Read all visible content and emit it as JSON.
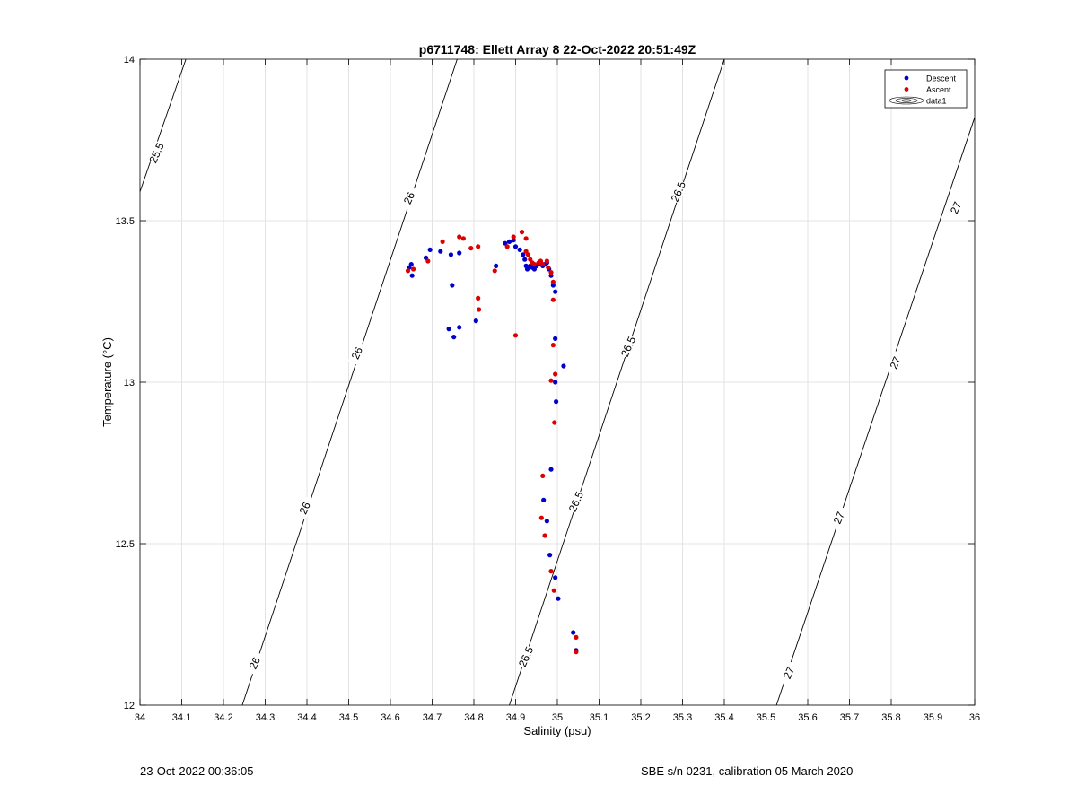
{
  "chart_data": {
    "type": "scatter",
    "title": "p6711748: Ellett Array 8 22-Oct-2022 20:51:49Z",
    "xlabel": "Salinity (psu)",
    "ylabel": "Temperature (°C)",
    "xlim": [
      34,
      36
    ],
    "ylim": [
      12,
      14
    ],
    "x_ticks": [
      "34",
      "34.1",
      "34.2",
      "34.3",
      "34.4",
      "34.5",
      "34.6",
      "34.7",
      "34.8",
      "34.9",
      "35",
      "35.1",
      "35.2",
      "35.3",
      "35.4",
      "35.5",
      "35.6",
      "35.7",
      "35.8",
      "35.9",
      "36"
    ],
    "y_ticks": [
      "12",
      "12.5",
      "13",
      "13.5",
      "14"
    ],
    "grid": true,
    "legend_position": "top-right",
    "colors": {
      "descent": "#0000cc",
      "ascent": "#dd0000",
      "contour": "#000000",
      "grid": "#e3e3e3"
    },
    "legend": [
      {
        "label": "Descent",
        "marker": "dot",
        "color": "#0000cc"
      },
      {
        "label": "Ascent",
        "marker": "dot",
        "color": "#dd0000"
      },
      {
        "label": "data1",
        "marker": "contour-icon",
        "color": "#000000"
      }
    ],
    "contours": [
      {
        "label": "25.5",
        "points": [
          [
            34.0,
            13.59
          ],
          [
            34.11,
            14.0
          ]
        ]
      },
      {
        "label": "26",
        "points": [
          [
            34.245,
            12.0
          ],
          [
            34.76,
            14.0
          ]
        ]
      },
      {
        "label": "26.5",
        "points": [
          [
            34.885,
            12.0
          ],
          [
            35.4,
            14.0
          ]
        ]
      },
      {
        "label": "27",
        "points": [
          [
            35.525,
            12.0
          ],
          [
            36.0,
            13.82
          ]
        ]
      }
    ],
    "contour_labels": [
      {
        "text": "25.5",
        "x": 34.04,
        "y": 13.71
      },
      {
        "text": "26",
        "x": 34.645,
        "y": 13.57
      },
      {
        "text": "26",
        "x": 34.52,
        "y": 13.09
      },
      {
        "text": "26",
        "x": 34.395,
        "y": 12.61
      },
      {
        "text": "26",
        "x": 34.275,
        "y": 12.13
      },
      {
        "text": "26.5",
        "x": 35.29,
        "y": 13.59
      },
      {
        "text": "26.5",
        "x": 35.17,
        "y": 13.11
      },
      {
        "text": "26.5",
        "x": 35.045,
        "y": 12.63
      },
      {
        "text": "26.5",
        "x": 34.925,
        "y": 12.15
      },
      {
        "text": "27",
        "x": 35.955,
        "y": 13.54
      },
      {
        "text": "27",
        "x": 35.81,
        "y": 13.06
      },
      {
        "text": "27",
        "x": 35.675,
        "y": 12.58
      },
      {
        "text": "27",
        "x": 35.555,
        "y": 12.1
      }
    ],
    "series": [
      {
        "name": "Descent",
        "points": [
          [
            34.645,
            13.355
          ],
          [
            34.65,
            13.365
          ],
          [
            34.652,
            13.33
          ],
          [
            34.685,
            13.385
          ],
          [
            34.695,
            13.41
          ],
          [
            34.72,
            13.405
          ],
          [
            34.745,
            13.395
          ],
          [
            34.748,
            13.3
          ],
          [
            34.74,
            13.165
          ],
          [
            34.752,
            13.14
          ],
          [
            34.765,
            13.17
          ],
          [
            34.765,
            13.4
          ],
          [
            34.805,
            13.19
          ],
          [
            34.853,
            13.36
          ],
          [
            34.875,
            13.43
          ],
          [
            34.885,
            13.435
          ],
          [
            34.895,
            13.44
          ],
          [
            34.9,
            13.42
          ],
          [
            34.91,
            13.41
          ],
          [
            34.918,
            13.395
          ],
          [
            34.922,
            13.38
          ],
          [
            34.925,
            13.36
          ],
          [
            34.928,
            13.35
          ],
          [
            34.935,
            13.36
          ],
          [
            34.94,
            13.355
          ],
          [
            34.945,
            13.35
          ],
          [
            34.95,
            13.36
          ],
          [
            34.955,
            13.365
          ],
          [
            34.96,
            13.37
          ],
          [
            34.965,
            13.36
          ],
          [
            34.97,
            13.365
          ],
          [
            34.975,
            13.37
          ],
          [
            34.98,
            13.35
          ],
          [
            34.985,
            13.33
          ],
          [
            34.99,
            13.3
          ],
          [
            34.995,
            13.28
          ],
          [
            34.995,
            13.135
          ],
          [
            35.015,
            13.05
          ],
          [
            34.995,
            13.0
          ],
          [
            34.997,
            12.94
          ],
          [
            34.985,
            12.73
          ],
          [
            34.967,
            12.635
          ],
          [
            34.975,
            12.57
          ],
          [
            34.982,
            12.465
          ],
          [
            34.995,
            12.395
          ],
          [
            35.002,
            12.33
          ],
          [
            35.038,
            12.225
          ],
          [
            35.045,
            12.17
          ]
        ]
      },
      {
        "name": "Ascent",
        "points": [
          [
            34.642,
            13.345
          ],
          [
            34.655,
            13.35
          ],
          [
            34.69,
            13.375
          ],
          [
            34.725,
            13.435
          ],
          [
            34.765,
            13.45
          ],
          [
            34.775,
            13.445
          ],
          [
            34.793,
            13.415
          ],
          [
            34.81,
            13.42
          ],
          [
            34.81,
            13.26
          ],
          [
            34.812,
            13.225
          ],
          [
            34.85,
            13.345
          ],
          [
            34.88,
            13.42
          ],
          [
            34.895,
            13.45
          ],
          [
            34.9,
            13.145
          ],
          [
            34.915,
            13.465
          ],
          [
            34.925,
            13.445
          ],
          [
            34.925,
            13.405
          ],
          [
            34.93,
            13.395
          ],
          [
            34.935,
            13.38
          ],
          [
            34.94,
            13.37
          ],
          [
            34.945,
            13.365
          ],
          [
            34.955,
            13.37
          ],
          [
            34.96,
            13.375
          ],
          [
            34.965,
            13.365
          ],
          [
            34.975,
            13.375
          ],
          [
            34.978,
            13.355
          ],
          [
            34.985,
            13.34
          ],
          [
            34.99,
            13.31
          ],
          [
            34.99,
            13.255
          ],
          [
            34.99,
            13.115
          ],
          [
            34.995,
            13.025
          ],
          [
            34.985,
            13.005
          ],
          [
            34.993,
            12.875
          ],
          [
            34.965,
            12.71
          ],
          [
            34.962,
            12.58
          ],
          [
            34.97,
            12.525
          ],
          [
            34.985,
            12.415
          ],
          [
            34.992,
            12.355
          ],
          [
            35.045,
            12.21
          ],
          [
            35.045,
            12.165
          ]
        ]
      }
    ]
  },
  "footer": {
    "left": "23-Oct-2022 00:36:05",
    "right": "SBE s/n 0231, calibration 05 March 2020"
  }
}
